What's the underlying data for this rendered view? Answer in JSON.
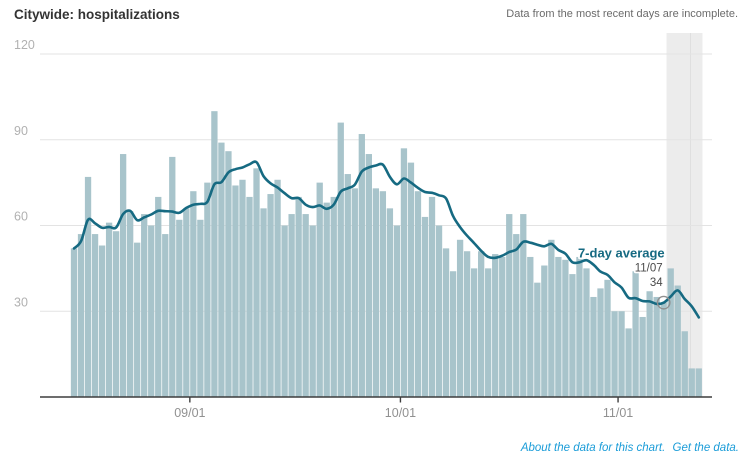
{
  "header": {
    "title": "Citywide: hospitalizations",
    "note": "Data from the most recent days are incomplete."
  },
  "footer": {
    "about_link": "About the data for this chart.",
    "data_link": "Get the data."
  },
  "chart_data": {
    "type": "bar",
    "title": "Citywide: hospitalizations",
    "xlabel": "",
    "ylabel": "",
    "ylim": [
      0,
      128
    ],
    "yticks": [
      30,
      60,
      90,
      120
    ],
    "xticks": [
      "09/01",
      "10/01",
      "11/01"
    ],
    "grid": "horizontal",
    "legend_position": "none",
    "series": [
      {
        "name": "hospitalizations",
        "type": "bar"
      },
      {
        "name": "7-day average",
        "type": "line",
        "derivation": "trailing 7-day mean of daily values"
      }
    ],
    "x": [
      "08/15",
      "08/16",
      "08/17",
      "08/18",
      "08/19",
      "08/20",
      "08/21",
      "08/22",
      "08/23",
      "08/24",
      "08/25",
      "08/26",
      "08/27",
      "08/28",
      "08/29",
      "08/30",
      "08/31",
      "09/01",
      "09/02",
      "09/03",
      "09/04",
      "09/05",
      "09/06",
      "09/07",
      "09/08",
      "09/09",
      "09/10",
      "09/11",
      "09/12",
      "09/13",
      "09/14",
      "09/15",
      "09/16",
      "09/17",
      "09/18",
      "09/19",
      "09/20",
      "09/21",
      "09/22",
      "09/23",
      "09/24",
      "09/25",
      "09/26",
      "09/27",
      "09/28",
      "09/29",
      "09/30",
      "10/01",
      "10/02",
      "10/03",
      "10/04",
      "10/05",
      "10/06",
      "10/07",
      "10/08",
      "10/09",
      "10/10",
      "10/11",
      "10/12",
      "10/13",
      "10/14",
      "10/15",
      "10/16",
      "10/17",
      "10/18",
      "10/19",
      "10/20",
      "10/21",
      "10/22",
      "10/23",
      "10/24",
      "10/25",
      "10/26",
      "10/27",
      "10/28",
      "10/29",
      "10/30",
      "10/31",
      "11/01",
      "11/02",
      "11/03",
      "11/04",
      "11/05",
      "11/06",
      "11/07",
      "11/08",
      "11/09",
      "11/10",
      "11/11",
      "11/12"
    ],
    "values": [
      52,
      57,
      77,
      57,
      53,
      61,
      58,
      85,
      65,
      54,
      64,
      60,
      70,
      57,
      84,
      62,
      66,
      72,
      62,
      75,
      100,
      89,
      86,
      74,
      76,
      70,
      80,
      66,
      71,
      76,
      60,
      64,
      70,
      64,
      60,
      75,
      68,
      70,
      96,
      78,
      73,
      92,
      85,
      73,
      72,
      66,
      60,
      87,
      82,
      72,
      63,
      70,
      60,
      52,
      44,
      55,
      51,
      45,
      51,
      45,
      50,
      49,
      64,
      57,
      64,
      49,
      40,
      46,
      55,
      49,
      48,
      43,
      49,
      45,
      35,
      38,
      41,
      30,
      30,
      24,
      44,
      28,
      37,
      35,
      33,
      45,
      39,
      23,
      10,
      10
    ],
    "annotation": {
      "line_label": "7-day average",
      "callout_date": "11/07",
      "callout_value": "34"
    },
    "incomplete_region": {
      "from": "11/08",
      "to": "11/12"
    },
    "colors": {
      "bar": "#a8c4cb",
      "line": "#166a82",
      "incomplete_region": "#ececec",
      "gridline": "#e3e3e3",
      "axis": "#3d3d3d",
      "y_label": "#b1b1b1",
      "x_label": "#919191",
      "annotation_text": "#4a4a4a",
      "marker_stroke": "#8f8f8f",
      "link": "#1a9cd8"
    }
  }
}
